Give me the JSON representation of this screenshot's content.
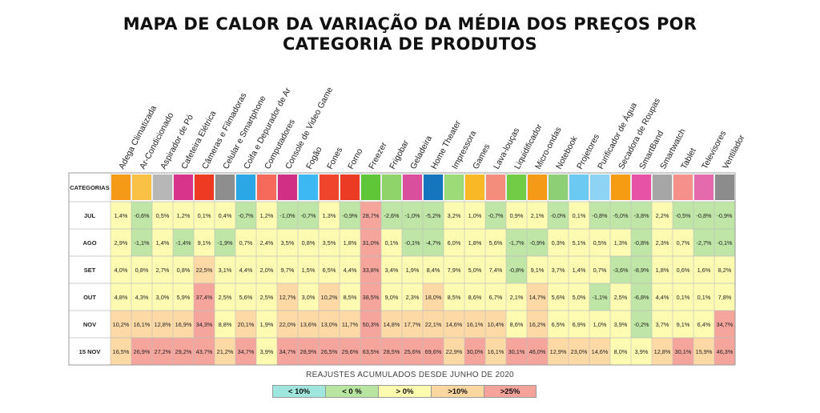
{
  "title_line1": "MAPA DE CALOR DA VARIAÇÃO DA MÉDIA DOS PREÇOS POR",
  "title_line2": "CATEGORIA DE PRODUTOS",
  "legend_title": "REAJUSTES ACUMULADOS DESDE JUNHO DE 2020",
  "legend": [
    {
      "label": "< 10%",
      "color": "#9ee6de"
    },
    {
      "label": "< 0 %",
      "color": "#b8e6a0"
    },
    {
      "label": "> 0%",
      "color": "#fdfbb0"
    },
    {
      "label": ">10%",
      "color": "#fbd7a0"
    },
    {
      "label": ">25%",
      "color": "#f4a29a"
    }
  ],
  "colors": {
    "neg": "#bfe6a6",
    "pos": "#fdfbb2",
    "over10": "#fdd9a6",
    "over25": "#f6a59d"
  },
  "chart_data": {
    "type": "heatmap",
    "row_header": "CATEGORIAS",
    "columns": [
      {
        "name": "Adega Climatizada",
        "color": "#f59a17"
      },
      {
        "name": "Ar-Condicionado",
        "color": "#f9c247"
      },
      {
        "name": "Aspirador de Pó",
        "color": "#b7b7b7"
      },
      {
        "name": "Cafeteira Elétrica",
        "color": "#d8348b"
      },
      {
        "name": "Câmeras e Filmadoras",
        "color": "#ef3a23"
      },
      {
        "name": "Celular e Smartphone",
        "color": "#8e8e8e"
      },
      {
        "name": "Coifa e Depurador de Ar",
        "color": "#2aa7e4"
      },
      {
        "name": "Computadores",
        "color": "#f56a5a"
      },
      {
        "name": "Console de Video Game",
        "color": "#d12f86"
      },
      {
        "name": "Fogão",
        "color": "#3db8f2"
      },
      {
        "name": "Fones",
        "color": "#f0452d"
      },
      {
        "name": "Forno",
        "color": "#ec3b25"
      },
      {
        "name": "Freezer",
        "color": "#5ec637"
      },
      {
        "name": "Frigobar",
        "color": "#8fd46a"
      },
      {
        "name": "Geladeira",
        "color": "#d94e9d"
      },
      {
        "name": "Home Theater",
        "color": "#1576bd"
      },
      {
        "name": "Impressora",
        "color": "#9cdb78"
      },
      {
        "name": "Games",
        "color": "#f9b825"
      },
      {
        "name": "Lava-louças",
        "color": "#f58d7c"
      },
      {
        "name": "Liquidificador",
        "color": "#72cc46"
      },
      {
        "name": "Micro-ondas",
        "color": "#f59a17"
      },
      {
        "name": "Notebook",
        "color": "#8ccf74"
      },
      {
        "name": "Projetores",
        "color": "#6cc9f2"
      },
      {
        "name": "Purificador de Água",
        "color": "#8fd3f4"
      },
      {
        "name": "Secadora de Roupas",
        "color": "#f59c12"
      },
      {
        "name": "SmartBand",
        "color": "#e751a6"
      },
      {
        "name": "Smartwatch",
        "color": "#a6a6a6"
      },
      {
        "name": "Tablet",
        "color": "#f6908a"
      },
      {
        "name": "Televisores",
        "color": "#e56aad"
      },
      {
        "name": "Ventilador",
        "color": "#8c8c8c"
      }
    ],
    "rows": [
      {
        "label": "JUL",
        "values": [
          1.4,
          -0.6,
          0.5,
          1.2,
          0.1,
          0.4,
          -0.7,
          1.2,
          -1.0,
          -0.7,
          1.3,
          -0.9,
          28.7,
          -2.6,
          -1.0,
          -5.2,
          3.2,
          1.0,
          -0.7,
          0.9,
          2.1,
          -0.0,
          0.1,
          -0.8,
          -5.0,
          -3.8,
          2.2,
          -0.5,
          -0.8,
          -0.9
        ]
      },
      {
        "label": "AGO",
        "values": [
          2.9,
          -1.1,
          1.4,
          -1.4,
          9.1,
          -1.9,
          0.7,
          2.4,
          3.5,
          0.8,
          3.5,
          1.8,
          31.0,
          0.1,
          -0.1,
          -4.7,
          6.0,
          1.8,
          5.6,
          -1.7,
          -0.9,
          0.3,
          5.1,
          0.5,
          1.3,
          -0.8,
          2.3,
          0.7,
          -2.7,
          -0.1
        ]
      },
      {
        "label": "SET",
        "values": [
          4.0,
          0.8,
          2.7,
          0.8,
          22.5,
          3.1,
          4.4,
          2.0,
          9.7,
          1.5,
          6.5,
          4.4,
          33.8,
          3.4,
          1.9,
          8.4,
          7.9,
          5.0,
          7.4,
          -0.8,
          9.1,
          3.7,
          1.4,
          0.7,
          -3.6,
          -8.9,
          1.8,
          0.6,
          1.6,
          8.2
        ]
      },
      {
        "label": "OUT",
        "values": [
          4.8,
          4.3,
          3.0,
          5.9,
          37.4,
          2.5,
          5.6,
          2.5,
          12.7,
          3.0,
          10.2,
          8.5,
          38.5,
          9.0,
          2.3,
          18.0,
          8.5,
          8.6,
          6.7,
          2.1,
          14.7,
          5.6,
          5.0,
          -1.1,
          2.5,
          -6.8,
          4.4,
          0.1,
          0.1,
          7.8
        ]
      },
      {
        "label": "NOV",
        "values": [
          10.2,
          16.1,
          12.8,
          16.9,
          34.3,
          8.8,
          20.1,
          1.9,
          22.0,
          13.6,
          13.0,
          11.7,
          50.3,
          14.8,
          17.7,
          22.1,
          14.6,
          16.1,
          10.4,
          8.6,
          16.2,
          6.5,
          6.9,
          1.0,
          3.9,
          -0.2,
          3.7,
          9.1,
          6.4,
          34.7
        ]
      },
      {
        "label": "15 NOV",
        "values": [
          16.5,
          26.9,
          27.2,
          29.2,
          43.7,
          21.2,
          34.7,
          3.9,
          34.7,
          28.9,
          26.5,
          29.6,
          63.5,
          28.5,
          25.6,
          69.6,
          22.9,
          30.0,
          16.1,
          30.1,
          46.0,
          12.9,
          23.0,
          14.6,
          8.0,
          3.9,
          12.8,
          30.1,
          15.9,
          46.3
        ]
      }
    ]
  }
}
